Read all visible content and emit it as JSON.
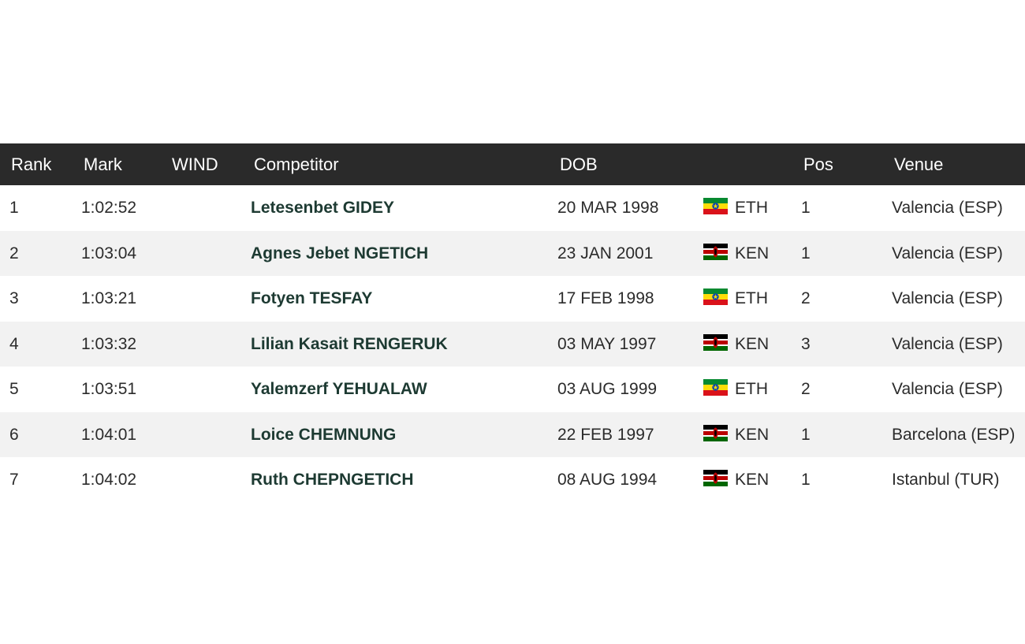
{
  "table": {
    "headers": {
      "rank": "Rank",
      "mark": "Mark",
      "wind": "WIND",
      "competitor": "Competitor",
      "dob": "DOB",
      "pos": "Pos",
      "venue": "Venue"
    },
    "rows": [
      {
        "rank": "1",
        "mark": "1:02:52",
        "wind": "",
        "competitor": "Letesenbet GIDEY",
        "dob": "20 MAR 1998",
        "flag": "ethiopia-flag-icon",
        "nat": "ETH",
        "pos": "1",
        "venue": "Valencia (ESP)"
      },
      {
        "rank": "2",
        "mark": "1:03:04",
        "wind": "",
        "competitor": "Agnes Jebet NGETICH",
        "dob": "23 JAN 2001",
        "flag": "kenya-flag-icon",
        "nat": "KEN",
        "pos": "1",
        "venue": "Valencia (ESP)"
      },
      {
        "rank": "3",
        "mark": "1:03:21",
        "wind": "",
        "competitor": "Fotyen TESFAY",
        "dob": "17 FEB 1998",
        "flag": "ethiopia-flag-icon",
        "nat": "ETH",
        "pos": "2",
        "venue": "Valencia (ESP)"
      },
      {
        "rank": "4",
        "mark": "1:03:32",
        "wind": "",
        "competitor": "Lilian Kasait RENGERUK",
        "dob": "03 MAY 1997",
        "flag": "kenya-flag-icon",
        "nat": "KEN",
        "pos": "3",
        "venue": "Valencia (ESP)"
      },
      {
        "rank": "5",
        "mark": "1:03:51",
        "wind": "",
        "competitor": "Yalemzerf YEHUALAW",
        "dob": "03 AUG 1999",
        "flag": "ethiopia-flag-icon",
        "nat": "ETH",
        "pos": "2",
        "venue": "Valencia (ESP)"
      },
      {
        "rank": "6",
        "mark": "1:04:01",
        "wind": "",
        "competitor": "Loice CHEMNUNG",
        "dob": "22 FEB 1997",
        "flag": "kenya-flag-icon",
        "nat": "KEN",
        "pos": "1",
        "venue": "Barcelona (ESP)"
      },
      {
        "rank": "7",
        "mark": "1:04:02",
        "wind": "",
        "competitor": "Ruth CHEPNGETICH",
        "dob": "08 AUG 1994",
        "flag": "kenya-flag-icon",
        "nat": "KEN",
        "pos": "1",
        "venue": "Istanbul (TUR)"
      }
    ]
  },
  "colors": {
    "header_bg": "#2a2a2a",
    "header_text": "#ffffff",
    "stripe": "#f2f2f2",
    "competitor_link": "#1d3a32",
    "ethiopia_green": "#078930",
    "ethiopia_yellow": "#fcdd09",
    "ethiopia_red": "#da121a",
    "kenya_black": "#000000",
    "kenya_red": "#bb0000",
    "kenya_green": "#006600"
  }
}
